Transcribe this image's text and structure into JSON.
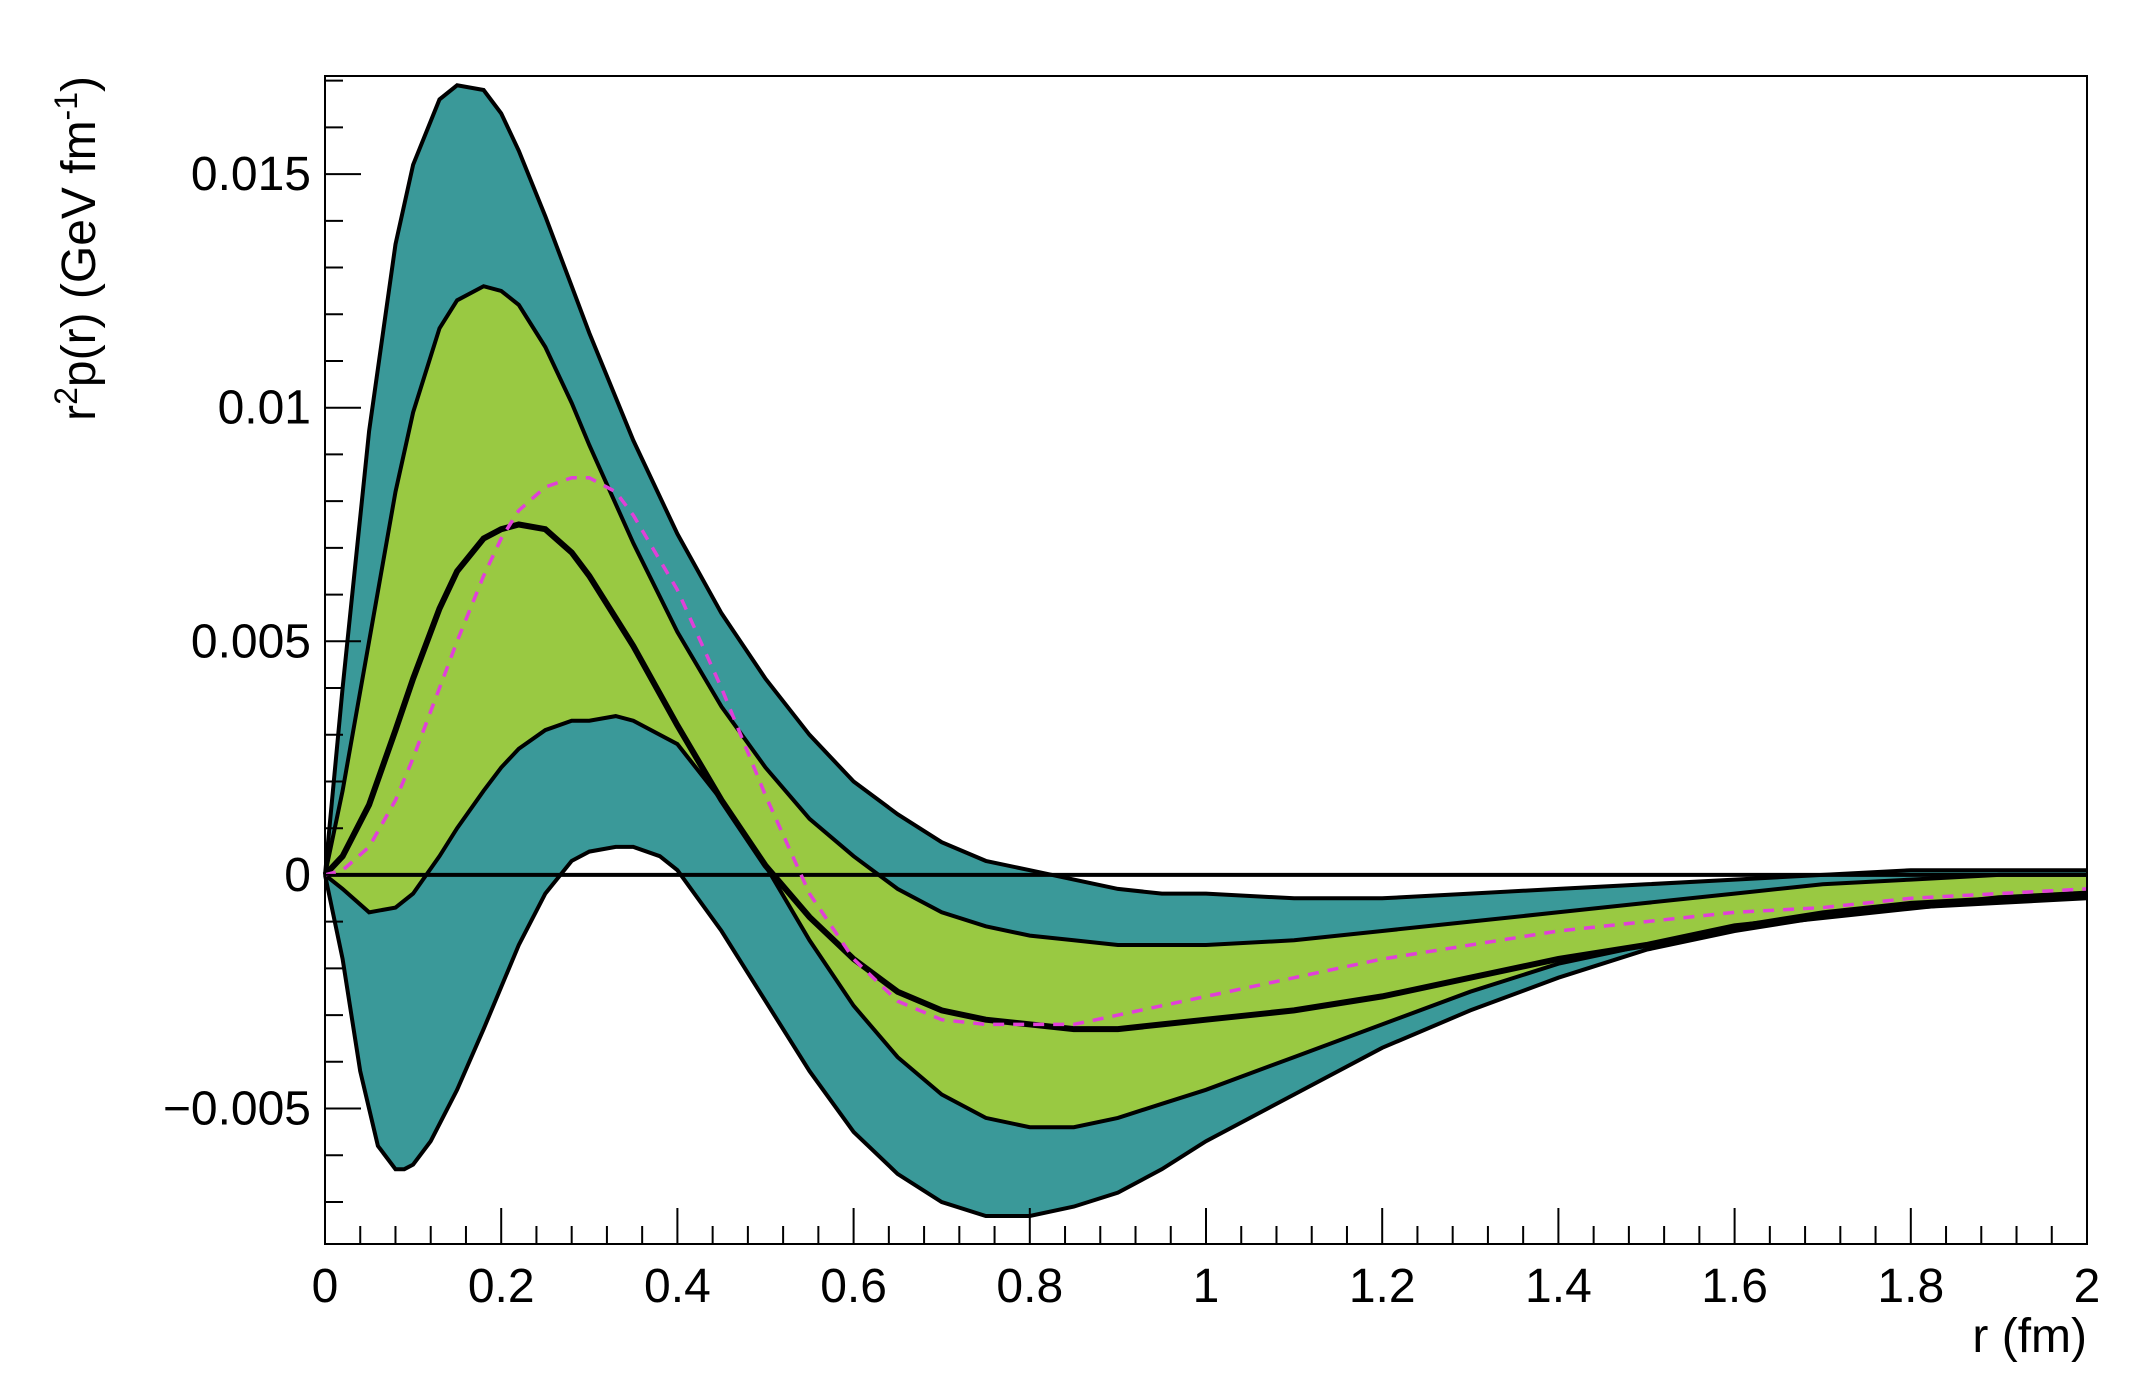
{
  "chart_data": {
    "type": "area",
    "xlabel": "r (fm)",
    "ylabel": {
      "base": "r",
      "sup1": "2",
      "mid": "p(r) (GeV fm",
      "sup2": "-1",
      "end": ")"
    },
    "xlim": [
      0,
      2
    ],
    "ylim": [
      -0.0079,
      0.0171
    ],
    "x_ticks": [
      0,
      0.2,
      0.4,
      0.6,
      0.8,
      1,
      1.2,
      1.4,
      1.6,
      1.8,
      2
    ],
    "x_tick_labels": [
      "0",
      "0.2",
      "0.4",
      "0.6",
      "0.8",
      "1",
      "1.2",
      "1.4",
      "1.6",
      "1.8",
      "2"
    ],
    "y_ticks": [
      -0.005,
      0,
      0.005,
      0.01,
      0.015
    ],
    "y_tick_labels": [
      "−0.005",
      "0",
      "0.005",
      "0.01",
      "0.015"
    ],
    "grid": false,
    "colors": {
      "outer_band": "#3a9999",
      "inner_band": "#99c942",
      "central": "#000000",
      "dashed": "#e040d8",
      "zero_line": "#000000"
    },
    "series": [
      {
        "role": "outer-upper",
        "x": [
          0,
          0.02,
          0.05,
          0.08,
          0.1,
          0.13,
          0.15,
          0.18,
          0.2,
          0.22,
          0.25,
          0.28,
          0.3,
          0.35,
          0.4,
          0.45,
          0.5,
          0.55,
          0.6,
          0.65,
          0.7,
          0.75,
          0.8,
          0.85,
          0.9,
          0.95,
          1.0,
          1.1,
          1.2,
          1.3,
          1.4,
          1.5,
          1.6,
          1.7,
          1.8,
          1.9,
          2.0
        ],
        "y": [
          0,
          0.004,
          0.0095,
          0.0135,
          0.0152,
          0.0166,
          0.0169,
          0.0168,
          0.0163,
          0.0155,
          0.0141,
          0.0126,
          0.0116,
          0.0093,
          0.0073,
          0.0056,
          0.0042,
          0.003,
          0.002,
          0.0013,
          0.0007,
          0.0003,
          0.0001,
          -0.0001,
          -0.0003,
          -0.0004,
          -0.0004,
          -0.0005,
          -0.0005,
          -0.0004,
          -0.0003,
          -0.0002,
          -0.0001,
          0,
          0.0001,
          0.0001,
          0.0001
        ]
      },
      {
        "role": "inner-upper",
        "x": [
          0,
          0.02,
          0.05,
          0.08,
          0.1,
          0.13,
          0.15,
          0.18,
          0.2,
          0.22,
          0.25,
          0.28,
          0.3,
          0.35,
          0.4,
          0.45,
          0.5,
          0.55,
          0.6,
          0.65,
          0.7,
          0.75,
          0.8,
          0.85,
          0.9,
          0.95,
          1.0,
          1.1,
          1.2,
          1.3,
          1.4,
          1.5,
          1.6,
          1.7,
          1.8,
          1.9,
          2.0
        ],
        "y": [
          0,
          0.0018,
          0.005,
          0.0082,
          0.0099,
          0.0117,
          0.0123,
          0.0126,
          0.0125,
          0.0122,
          0.0113,
          0.0101,
          0.0092,
          0.0071,
          0.0052,
          0.0036,
          0.0023,
          0.0012,
          0.0004,
          -0.0003,
          -0.0008,
          -0.0011,
          -0.0013,
          -0.0014,
          -0.0015,
          -0.0015,
          -0.0015,
          -0.0014,
          -0.0012,
          -0.001,
          -0.0008,
          -0.0006,
          -0.0004,
          -0.0002,
          -0.0001,
          0,
          0
        ]
      },
      {
        "role": "central",
        "x": [
          0,
          0.02,
          0.05,
          0.08,
          0.1,
          0.13,
          0.15,
          0.18,
          0.2,
          0.22,
          0.25,
          0.28,
          0.3,
          0.35,
          0.4,
          0.45,
          0.5,
          0.55,
          0.6,
          0.65,
          0.7,
          0.75,
          0.8,
          0.85,
          0.9,
          0.95,
          1.0,
          1.1,
          1.2,
          1.3,
          1.4,
          1.5,
          1.6,
          1.7,
          1.8,
          1.9,
          2.0
        ],
        "y": [
          0,
          0.0004,
          0.0015,
          0.0031,
          0.0042,
          0.0057,
          0.0065,
          0.0072,
          0.0074,
          0.0075,
          0.0074,
          0.0069,
          0.0064,
          0.0049,
          0.0032,
          0.0016,
          0.0002,
          -0.0009,
          -0.0018,
          -0.0025,
          -0.0029,
          -0.0031,
          -0.0032,
          -0.0033,
          -0.0033,
          -0.0032,
          -0.0031,
          -0.0029,
          -0.0026,
          -0.0022,
          -0.0018,
          -0.0015,
          -0.0011,
          -0.0009,
          -0.0007,
          -0.0005,
          -0.0004
        ]
      },
      {
        "role": "inner-lower",
        "x": [
          0,
          0.02,
          0.05,
          0.08,
          0.1,
          0.13,
          0.15,
          0.18,
          0.2,
          0.22,
          0.25,
          0.28,
          0.3,
          0.33,
          0.35,
          0.4,
          0.45,
          0.5,
          0.55,
          0.6,
          0.65,
          0.7,
          0.75,
          0.8,
          0.85,
          0.9,
          0.95,
          1.0,
          1.1,
          1.2,
          1.3,
          1.4,
          1.5,
          1.6,
          1.7,
          1.8,
          1.9,
          2.0
        ],
        "y": [
          0,
          -0.0003,
          -0.0008,
          -0.0007,
          -0.0004,
          0.0004,
          0.001,
          0.0018,
          0.0023,
          0.0027,
          0.0031,
          0.0033,
          0.0033,
          0.0034,
          0.0033,
          0.0028,
          0.0016,
          0.0002,
          -0.0014,
          -0.0028,
          -0.0039,
          -0.0047,
          -0.0052,
          -0.0054,
          -0.0054,
          -0.0052,
          -0.0049,
          -0.0046,
          -0.0039,
          -0.0032,
          -0.0025,
          -0.0019,
          -0.0015,
          -0.0011,
          -0.0008,
          -0.0006,
          -0.0005,
          -0.0004
        ]
      },
      {
        "role": "outer-lower",
        "x": [
          0,
          0.02,
          0.04,
          0.06,
          0.08,
          0.09,
          0.1,
          0.12,
          0.15,
          0.18,
          0.2,
          0.22,
          0.25,
          0.28,
          0.3,
          0.33,
          0.35,
          0.38,
          0.4,
          0.45,
          0.5,
          0.55,
          0.6,
          0.65,
          0.7,
          0.75,
          0.8,
          0.85,
          0.9,
          0.95,
          1.0,
          1.1,
          1.2,
          1.3,
          1.4,
          1.5,
          1.6,
          1.7,
          1.8,
          1.9,
          2.0
        ],
        "y": [
          0,
          -0.0018,
          -0.0042,
          -0.0058,
          -0.0063,
          -0.0063,
          -0.0062,
          -0.0057,
          -0.0046,
          -0.0033,
          -0.0024,
          -0.0015,
          -0.0004,
          0.0003,
          0.0005,
          0.0006,
          0.0006,
          0.0004,
          0.0001,
          -0.0012,
          -0.0027,
          -0.0042,
          -0.0055,
          -0.0064,
          -0.007,
          -0.0073,
          -0.0073,
          -0.0071,
          -0.0068,
          -0.0063,
          -0.0057,
          -0.0047,
          -0.0037,
          -0.0029,
          -0.0022,
          -0.0016,
          -0.0012,
          -0.0009,
          -0.0007,
          -0.0006,
          -0.0005
        ]
      },
      {
        "role": "dashed",
        "x": [
          0,
          0.02,
          0.05,
          0.08,
          0.1,
          0.13,
          0.15,
          0.18,
          0.2,
          0.22,
          0.25,
          0.28,
          0.3,
          0.33,
          0.35,
          0.4,
          0.45,
          0.5,
          0.55,
          0.6,
          0.65,
          0.7,
          0.75,
          0.8,
          0.85,
          0.9,
          0.95,
          1.0,
          1.1,
          1.2,
          1.3,
          1.4,
          1.5,
          1.6,
          1.7,
          1.8,
          1.9,
          2.0
        ],
        "y": [
          0,
          0.0001,
          0.0006,
          0.0016,
          0.0025,
          0.004,
          0.005,
          0.0064,
          0.0072,
          0.0078,
          0.0083,
          0.0085,
          0.0085,
          0.0082,
          0.0077,
          0.0061,
          0.004,
          0.0017,
          -0.0004,
          -0.0018,
          -0.0027,
          -0.0031,
          -0.0032,
          -0.0032,
          -0.0032,
          -0.003,
          -0.0028,
          -0.0026,
          -0.0022,
          -0.0018,
          -0.0015,
          -0.0012,
          -0.001,
          -0.0008,
          -0.0007,
          -0.0005,
          -0.0004,
          -0.0003
        ]
      }
    ]
  }
}
